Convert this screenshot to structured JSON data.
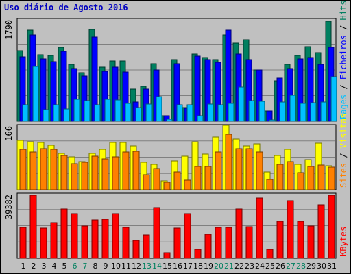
{
  "title": "Uso diário de Agosto 2016",
  "chart_data": [
    {
      "type": "bar",
      "name": "hits-files-pages",
      "max_label": "1790",
      "ylim": [
        0,
        1790
      ],
      "categories": [
        "1",
        "2",
        "3",
        "4",
        "5",
        "6",
        "7",
        "8",
        "9",
        "10",
        "11",
        "12",
        "13",
        "14",
        "15",
        "16",
        "17",
        "18",
        "19",
        "20",
        "21",
        "22",
        "23",
        "24",
        "25",
        "26",
        "27",
        "28",
        "29",
        "30",
        "31"
      ],
      "weekend_days": [
        "6",
        "7",
        "13",
        "14",
        "20",
        "21",
        "27",
        "28"
      ],
      "side_label": [
        {
          "text": "Pages",
          "color": "#00c0ff"
        },
        {
          "text": " / ",
          "color": "#000000"
        },
        {
          "text": "Ficheiros",
          "color": "#0000ff"
        },
        {
          "text": " / ",
          "color": "#000000"
        },
        {
          "text": "Hits",
          "color": "#007f60"
        }
      ],
      "series": [
        {
          "name": "Hits",
          "color": "#007f60",
          "values": [
            1240,
            1600,
            1170,
            1160,
            1305,
            1000,
            855,
            1610,
            955,
            1060,
            1060,
            570,
            625,
            1020,
            110,
            1080,
            250,
            1180,
            1120,
            1085,
            1510,
            1370,
            1430,
            910,
            185,
            715,
            1005,
            1160,
            1315,
            1205,
            1755
          ]
        },
        {
          "name": "Ficheiros",
          "color": "#0000ff",
          "values": [
            1135,
            1510,
            1095,
            1045,
            1230,
            935,
            800,
            1485,
            880,
            950,
            875,
            350,
            575,
            910,
            105,
            1010,
            240,
            1150,
            1090,
            1040,
            1595,
            1185,
            1090,
            910,
            185,
            760,
            935,
            1095,
            1125,
            1000,
            1295
          ]
        },
        {
          "name": "Pages",
          "color": "#00c0ff",
          "values": [
            295,
            970,
            215,
            295,
            225,
            390,
            375,
            295,
            390,
            385,
            320,
            245,
            305,
            445,
            50,
            300,
            300,
            105,
            315,
            295,
            325,
            610,
            365,
            360,
            35,
            350,
            470,
            320,
            330,
            345,
            790
          ]
        }
      ]
    },
    {
      "type": "bar",
      "name": "visits-sites",
      "max_label": "166",
      "ylim": [
        0,
        166
      ],
      "side_label": [
        {
          "text": "Sites",
          "color": "#ff8000"
        },
        {
          "text": " / ",
          "color": "#000000"
        },
        {
          "text": "Visitas",
          "color": "#ffff00"
        }
      ],
      "series": [
        {
          "name": "Visitas",
          "color": "#ffff00",
          "values": [
            127,
            124,
            122,
            116,
            95,
            85,
            74,
            95,
            105,
            123,
            123,
            113,
            71,
            67,
            24,
            76,
            87,
            124,
            93,
            137,
            166,
            131,
            114,
            119,
            47,
            89,
            104,
            67,
            79,
            120,
            63
          ]
        },
        {
          "name": "Sites",
          "color": "#ff8000",
          "values": [
            105,
            98,
            107,
            104,
            89,
            68,
            72,
            88,
            81,
            85,
            98,
            100,
            40,
            56,
            21,
            47,
            27,
            62,
            61,
            98,
            144,
            106,
            106,
            98,
            28,
            67,
            74,
            45,
            61,
            65,
            59
          ]
        }
      ]
    },
    {
      "type": "bar",
      "name": "kbytes",
      "max_label": "39382",
      "ylim": [
        0,
        39382
      ],
      "side_label": [
        {
          "text": "KBytes",
          "color": "#ff0000"
        }
      ],
      "series": [
        {
          "name": "KBytes",
          "color": "#ff0000",
          "values": [
            19200,
            38700,
            18500,
            22100,
            30400,
            27500,
            20100,
            23800,
            23900,
            27200,
            19100,
            11300,
            14400,
            31100,
            3800,
            18500,
            27400,
            6000,
            14800,
            19200,
            19200,
            30300,
            19300,
            36700,
            6000,
            22600,
            35400,
            22600,
            20100,
            32800,
            38700
          ]
        }
      ]
    }
  ]
}
